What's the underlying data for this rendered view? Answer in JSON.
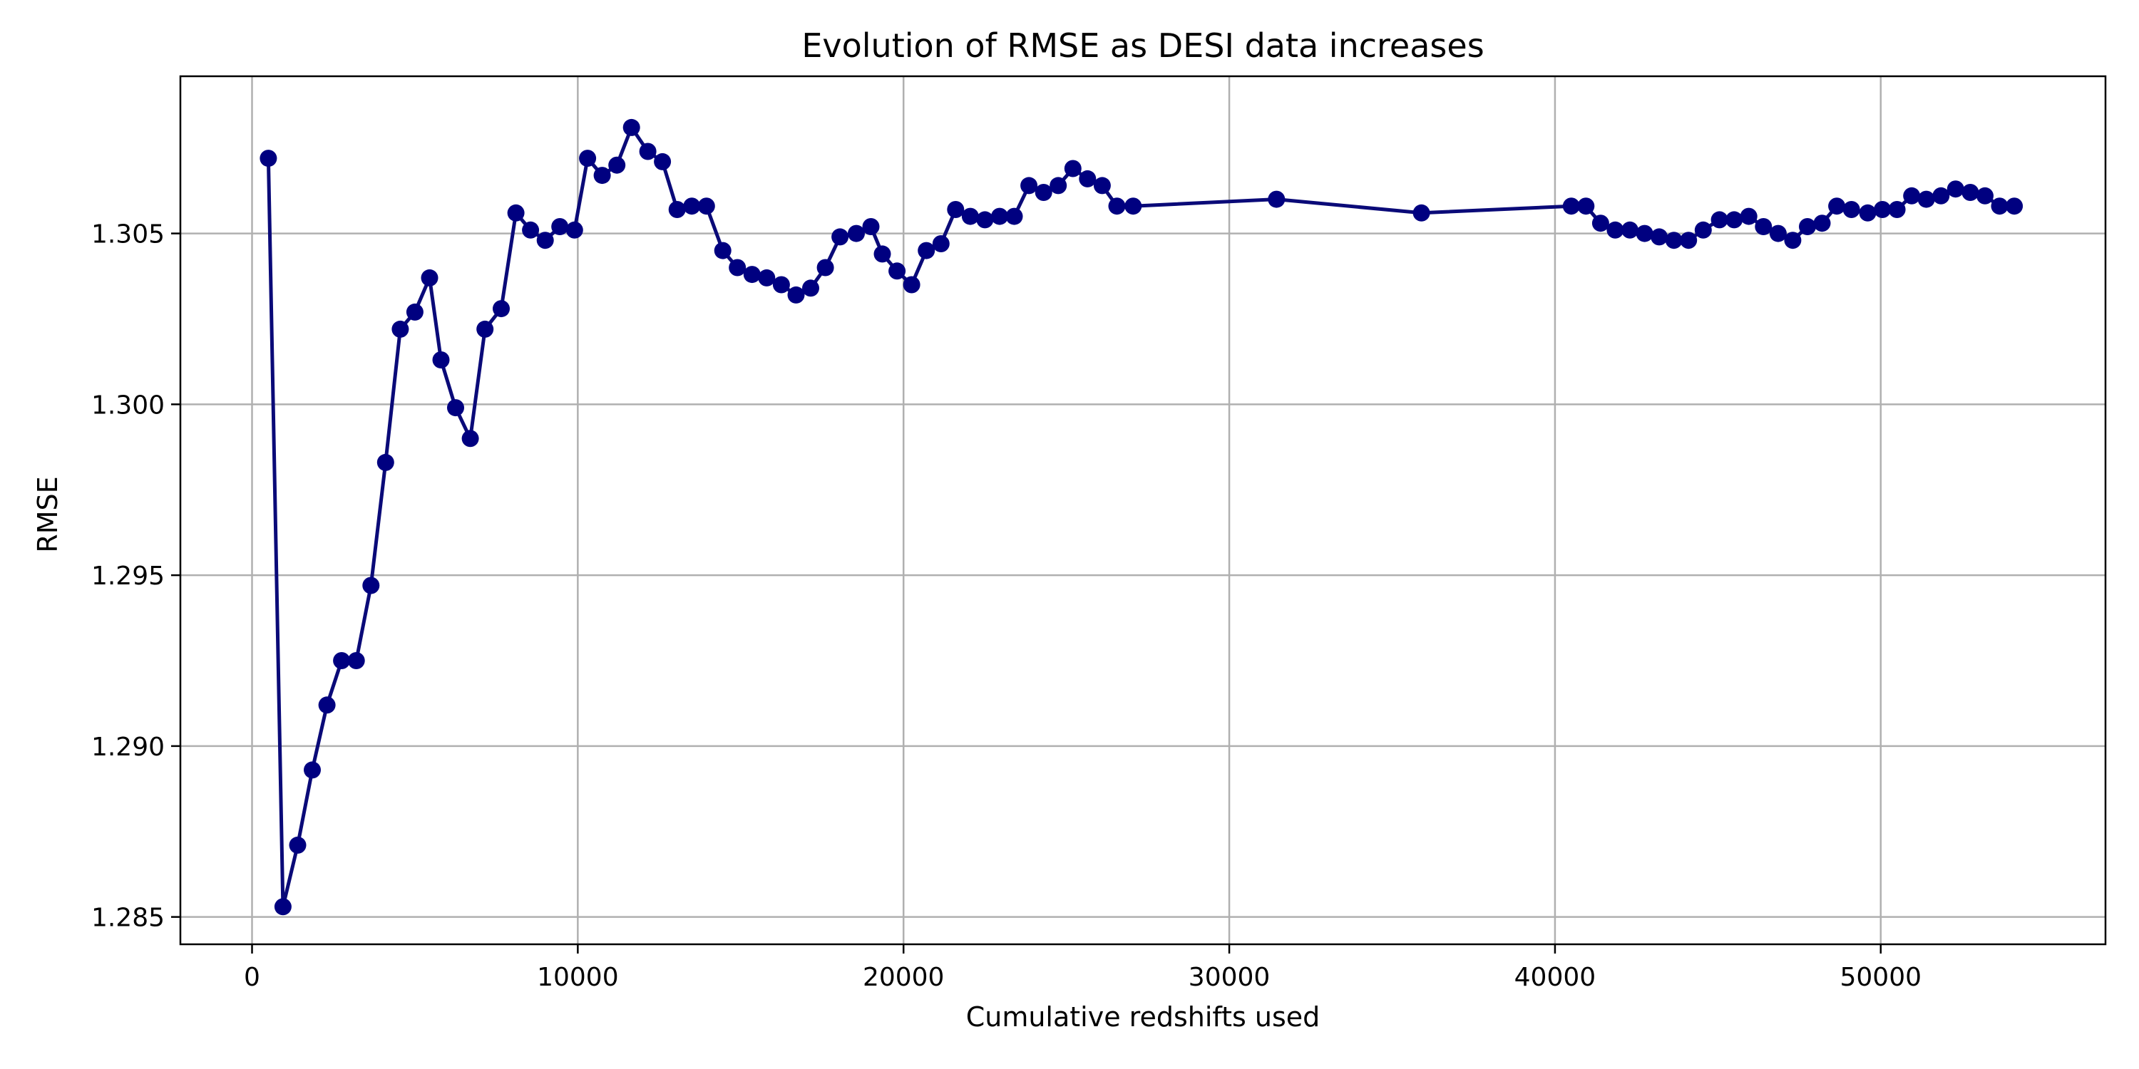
{
  "chart_data": {
    "type": "line",
    "title": "Evolution of RMSE as DESI data increases",
    "xlabel": "Cumulative redshifts used",
    "ylabel": "RMSE",
    "xlim": [
      -2200,
      56900
    ],
    "ylim": [
      1.2842,
      1.3096
    ],
    "xticks": [
      0,
      10000,
      20000,
      30000,
      40000,
      50000
    ],
    "yticks": [
      1.285,
      1.29,
      1.295,
      1.3,
      1.305
    ],
    "ytick_labels": [
      "1.285",
      "1.290",
      "1.295",
      "1.300",
      "1.305"
    ],
    "grid": true,
    "legend": "none",
    "colors": {
      "line": "#0a0a78",
      "marker": "#000080",
      "grid": "#b0b0b0"
    },
    "series": [
      {
        "x": [
          500,
          950,
          1400,
          1850,
          2300,
          2750,
          3200,
          3650,
          4100,
          4550,
          5000,
          5450,
          5800,
          6250,
          6700,
          7150,
          7650,
          8100,
          8550,
          9000,
          9450,
          9900,
          10300,
          10750,
          11200,
          11650,
          12150,
          12600,
          13050,
          13500,
          13950,
          14450,
          14900,
          15350,
          15800,
          16250,
          16700,
          17150,
          17600,
          18050,
          18550,
          19000,
          19350,
          19800,
          20250,
          20700,
          21150,
          21600,
          22050,
          22500,
          22950,
          23400,
          23850,
          24300,
          24750,
          25200,
          25650,
          26100,
          26550,
          27050,
          31450,
          35900,
          40500,
          40950,
          41400,
          41850,
          42300,
          42750,
          43200,
          43650,
          44100,
          44550,
          45050,
          45500,
          45950,
          46400,
          46850,
          47300,
          47750,
          48200,
          48650,
          49100,
          49600,
          50050,
          50500,
          50950,
          51400,
          51850,
          52300,
          52750,
          53200,
          53650,
          54100
        ],
        "y": [
          1.3072,
          1.2853,
          1.2871,
          1.2893,
          1.2912,
          1.2925,
          1.2925,
          1.2947,
          1.2983,
          1.3022,
          1.3027,
          1.3037,
          1.3013,
          1.2999,
          1.299,
          1.3022,
          1.3028,
          1.3056,
          1.3051,
          1.3048,
          1.3052,
          1.3051,
          1.3072,
          1.3067,
          1.307,
          1.3081,
          1.3074,
          1.3071,
          1.3057,
          1.3058,
          1.3058,
          1.3045,
          1.304,
          1.3038,
          1.3037,
          1.3035,
          1.3032,
          1.3034,
          1.304,
          1.3049,
          1.305,
          1.3052,
          1.3044,
          1.3039,
          1.3035,
          1.3045,
          1.3047,
          1.3057,
          1.3055,
          1.3054,
          1.3055,
          1.3055,
          1.3064,
          1.3062,
          1.3064,
          1.3069,
          1.3066,
          1.3064,
          1.3058,
          1.3058,
          1.306,
          1.3056,
          1.3058,
          1.3058,
          1.3053,
          1.3051,
          1.3051,
          1.305,
          1.3049,
          1.3048,
          1.3048,
          1.3051,
          1.3054,
          1.3054,
          1.3055,
          1.3052,
          1.305,
          1.3048,
          1.3052,
          1.3053,
          1.3058,
          1.3057,
          1.3056,
          1.3057,
          1.3057,
          1.3061,
          1.306,
          1.3061,
          1.3063,
          1.3062,
          1.3061,
          1.3058,
          1.3058
        ]
      }
    ]
  }
}
